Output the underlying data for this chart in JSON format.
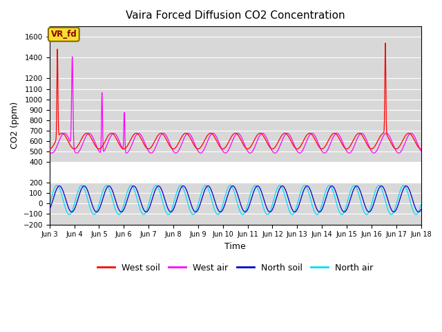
{
  "title": "Vaira Forced Diffusion CO2 Concentration",
  "xlabel": "Time",
  "ylabel": "CO2 (ppm)",
  "ylim": [
    -200,
    1700
  ],
  "colors": {
    "west_soil": "#ff0000",
    "west_air": "#ff00ff",
    "north_soil": "#0000cc",
    "north_air": "#00ddff"
  },
  "legend_labels": [
    "West soil",
    "West air",
    "North soil",
    "North air"
  ],
  "yticks": [
    -200,
    -100,
    0,
    100,
    200,
    400,
    500,
    600,
    700,
    800,
    900,
    1000,
    1100,
    1200,
    1400,
    1600
  ],
  "facecolor_plot": "#d8d8d8",
  "facecolor_fig": "#ffffff",
  "annotation_text": "VR_fd"
}
